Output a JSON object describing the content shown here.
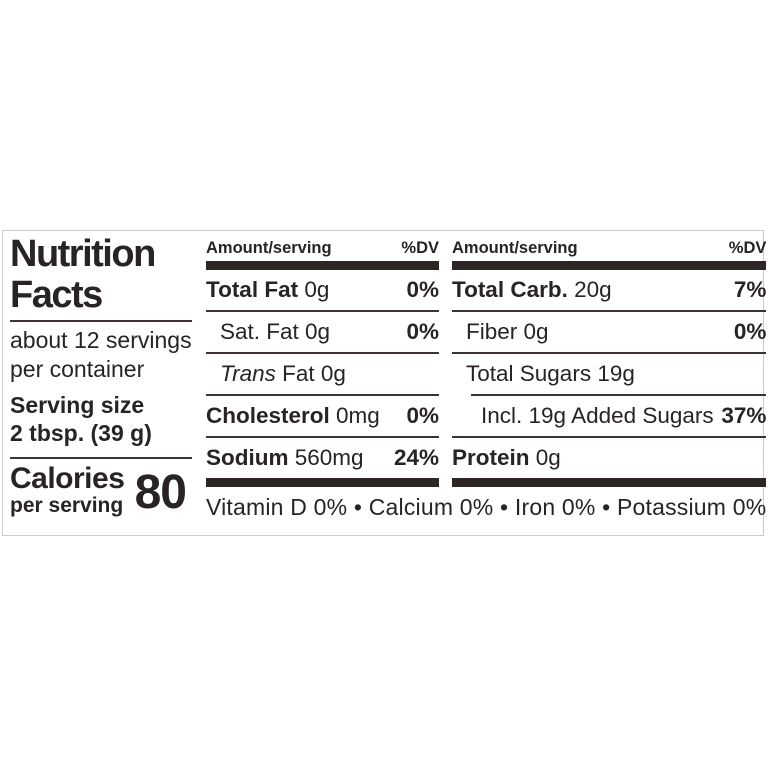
{
  "label": {
    "left": {
      "title_line1": "Nutrition",
      "title_line2": "Facts",
      "servings": "about 12 servings per container",
      "serving_size_label": "Serving size",
      "serving_size_value": "2 tbsp. (39 g)",
      "calories_label": "Calories",
      "calories_sublabel": "per serving",
      "calories_value": "80"
    },
    "columns": [
      {
        "header_amount": "Amount/serving",
        "header_dv": "%DV",
        "rows": [
          {
            "bold": "Total Fat",
            "rest": " 0g",
            "dv": "0%"
          },
          {
            "bold": "",
            "rest": "Sat. Fat 0g",
            "dv": "0%"
          },
          {
            "italic": "Trans",
            "rest": " Fat 0g",
            "dv": ""
          },
          {
            "bold": "Cholesterol",
            "rest": " 0mg",
            "dv": "0%"
          },
          {
            "bold": "Sodium",
            "rest": " 560mg",
            "dv": "24%"
          }
        ]
      },
      {
        "header_amount": "Amount/serving",
        "header_dv": "%DV",
        "rows": [
          {
            "bold": "Total Carb.",
            "rest": " 20g",
            "dv": "7%"
          },
          {
            "bold": "",
            "rest": "Fiber 0g",
            "dv": "0%"
          },
          {
            "bold": "",
            "rest": "Total Sugars 19g",
            "dv": ""
          },
          {
            "bold": "",
            "rest": "Incl. 19g Added Sugars",
            "dv": "37%"
          },
          {
            "bold": "Protein",
            "rest": " 0g",
            "dv": ""
          }
        ]
      }
    ],
    "footer": "Vitamin D 0% • Calcium 0% • Iron 0% • Potassium 0%",
    "colors": {
      "ink": "#282324",
      "thick_bar": "#2d2624",
      "thin_rule": "#3b3433",
      "outer_border": "#cbcbcb"
    }
  }
}
